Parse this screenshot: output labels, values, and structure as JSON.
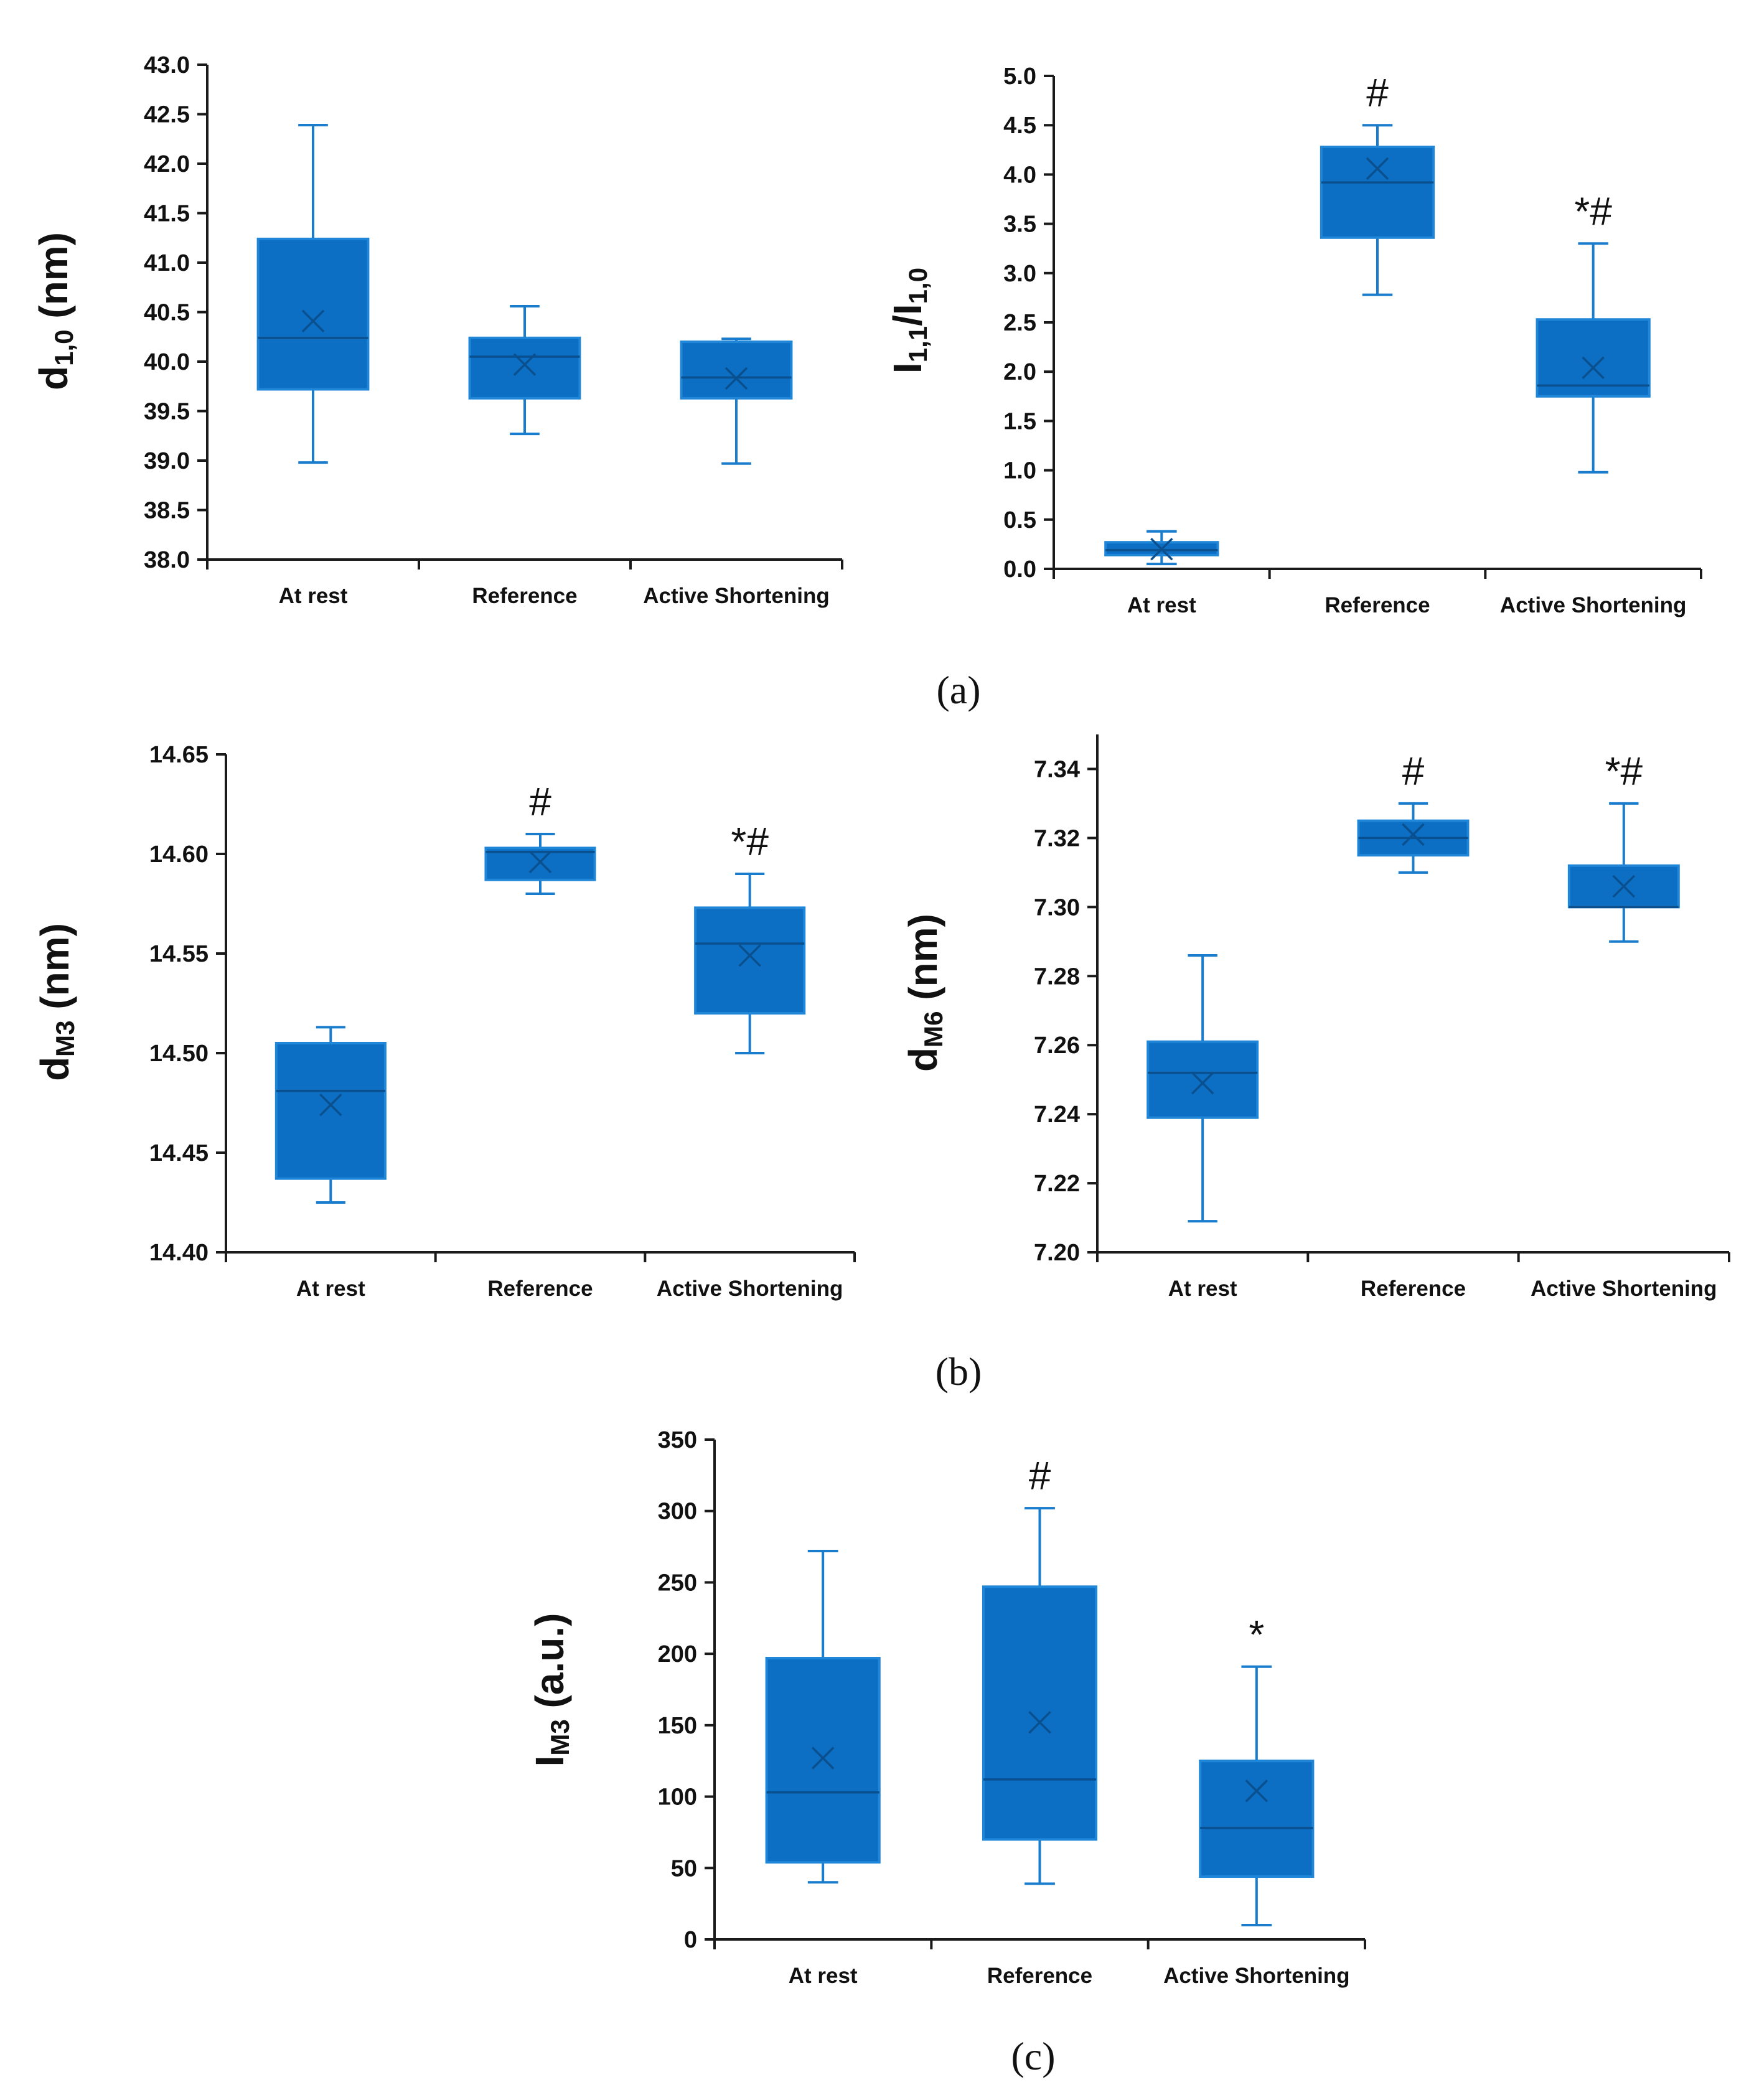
{
  "panel_labels": [
    "(a)",
    "(b)",
    "(c)"
  ],
  "chart_data": [
    {
      "type": "box",
      "panel": "(a)",
      "ylabel": {
        "main": "d",
        "sub": "1,0",
        "suffix": " (nm)"
      },
      "categories": [
        "At rest",
        "Reference",
        "Active Shortening"
      ],
      "ylim": [
        38.0,
        43.0
      ],
      "yticks": [
        38.0,
        38.5,
        39.0,
        39.5,
        40.0,
        40.5,
        41.0,
        41.5,
        42.0,
        42.5,
        43.0
      ],
      "tick_decimals": 1,
      "boxes": [
        {
          "min": 38.98,
          "q1": 39.72,
          "median": 40.24,
          "q3": 41.24,
          "max": 42.39,
          "mean": 40.41
        },
        {
          "min": 39.27,
          "q1": 39.63,
          "median": 40.05,
          "q3": 40.24,
          "max": 40.56,
          "mean": 39.97
        },
        {
          "min": 38.97,
          "q1": 39.63,
          "median": 39.84,
          "q3": 40.2,
          "max": 40.23,
          "mean": 39.83
        }
      ],
      "annotations": [
        "",
        "",
        ""
      ]
    },
    {
      "type": "box",
      "panel": "(a)",
      "ylabel": {
        "main": "I",
        "sub": "1,1",
        "mid": "/I",
        "sub2": "1,0",
        "suffix": ""
      },
      "categories": [
        "At rest",
        "Reference",
        "Active Shortening"
      ],
      "ylim": [
        0.0,
        5.0
      ],
      "yticks": [
        0.0,
        0.5,
        1.0,
        1.5,
        2.0,
        2.5,
        3.0,
        3.5,
        4.0,
        4.5,
        5.0
      ],
      "tick_decimals": 1,
      "boxes": [
        {
          "min": 0.05,
          "q1": 0.14,
          "median": 0.19,
          "q3": 0.27,
          "max": 0.38,
          "mean": 0.2
        },
        {
          "min": 2.78,
          "q1": 3.36,
          "median": 3.92,
          "q3": 4.28,
          "max": 4.5,
          "mean": 4.06
        },
        {
          "min": 0.98,
          "q1": 1.75,
          "median": 1.86,
          "q3": 2.53,
          "max": 3.3,
          "mean": 2.04
        }
      ],
      "annotations": [
        "",
        "#",
        "*#"
      ]
    },
    {
      "type": "box",
      "panel": "(b)",
      "ylabel": {
        "main": "d",
        "sub": "M3",
        "suffix": " (nm)"
      },
      "categories": [
        "At rest",
        "Reference",
        "Active Shortening"
      ],
      "ylim": [
        14.4,
        14.65
      ],
      "yticks": [
        14.4,
        14.45,
        14.5,
        14.55,
        14.6,
        14.65
      ],
      "tick_decimals": 2,
      "boxes": [
        {
          "min": 14.425,
          "q1": 14.437,
          "median": 14.481,
          "q3": 14.505,
          "max": 14.513,
          "mean": 14.474
        },
        {
          "min": 14.58,
          "q1": 14.587,
          "median": 14.601,
          "q3": 14.603,
          "max": 14.61,
          "mean": 14.596
        },
        {
          "min": 14.5,
          "q1": 14.52,
          "median": 14.555,
          "q3": 14.573,
          "max": 14.59,
          "mean": 14.549
        }
      ],
      "annotations": [
        "",
        "#",
        "*#"
      ]
    },
    {
      "type": "box",
      "panel": "(b)",
      "ylabel": {
        "main": "d",
        "sub": "M6",
        "suffix": " (nm)"
      },
      "categories": [
        "At rest",
        "Reference",
        "Active Shortening"
      ],
      "ylim": [
        7.2,
        7.35
      ],
      "yticks": [
        7.2,
        7.22,
        7.24,
        7.26,
        7.28,
        7.3,
        7.32,
        7.34
      ],
      "tick_decimals": 2,
      "boxes": [
        {
          "min": 7.209,
          "q1": 7.239,
          "median": 7.252,
          "q3": 7.261,
          "max": 7.286,
          "mean": 7.249
        },
        {
          "min": 7.31,
          "q1": 7.315,
          "median": 7.32,
          "q3": 7.325,
          "max": 7.33,
          "mean": 7.321
        },
        {
          "min": 7.29,
          "q1": 7.3,
          "median": 7.3,
          "q3": 7.312,
          "max": 7.33,
          "mean": 7.306
        }
      ],
      "annotations": [
        "",
        "#",
        "*#"
      ]
    },
    {
      "type": "box",
      "panel": "(c)",
      "ylabel": {
        "main": "I",
        "sub": "M3",
        "suffix": " (a.u.)"
      },
      "categories": [
        "At rest",
        "Reference",
        "Active Shortening"
      ],
      "ylim": [
        0,
        350
      ],
      "yticks": [
        0,
        50,
        100,
        150,
        200,
        250,
        300,
        350
      ],
      "tick_decimals": 0,
      "boxes": [
        {
          "min": 40,
          "q1": 54,
          "median": 103,
          "q3": 197,
          "max": 272,
          "mean": 127
        },
        {
          "min": 39,
          "q1": 70,
          "median": 112,
          "q3": 247,
          "max": 302,
          "mean": 152
        },
        {
          "min": 10,
          "q1": 44,
          "median": 78,
          "q3": 125,
          "max": 191,
          "mean": 104
        }
      ],
      "annotations": [
        "",
        "#",
        "*"
      ]
    }
  ]
}
